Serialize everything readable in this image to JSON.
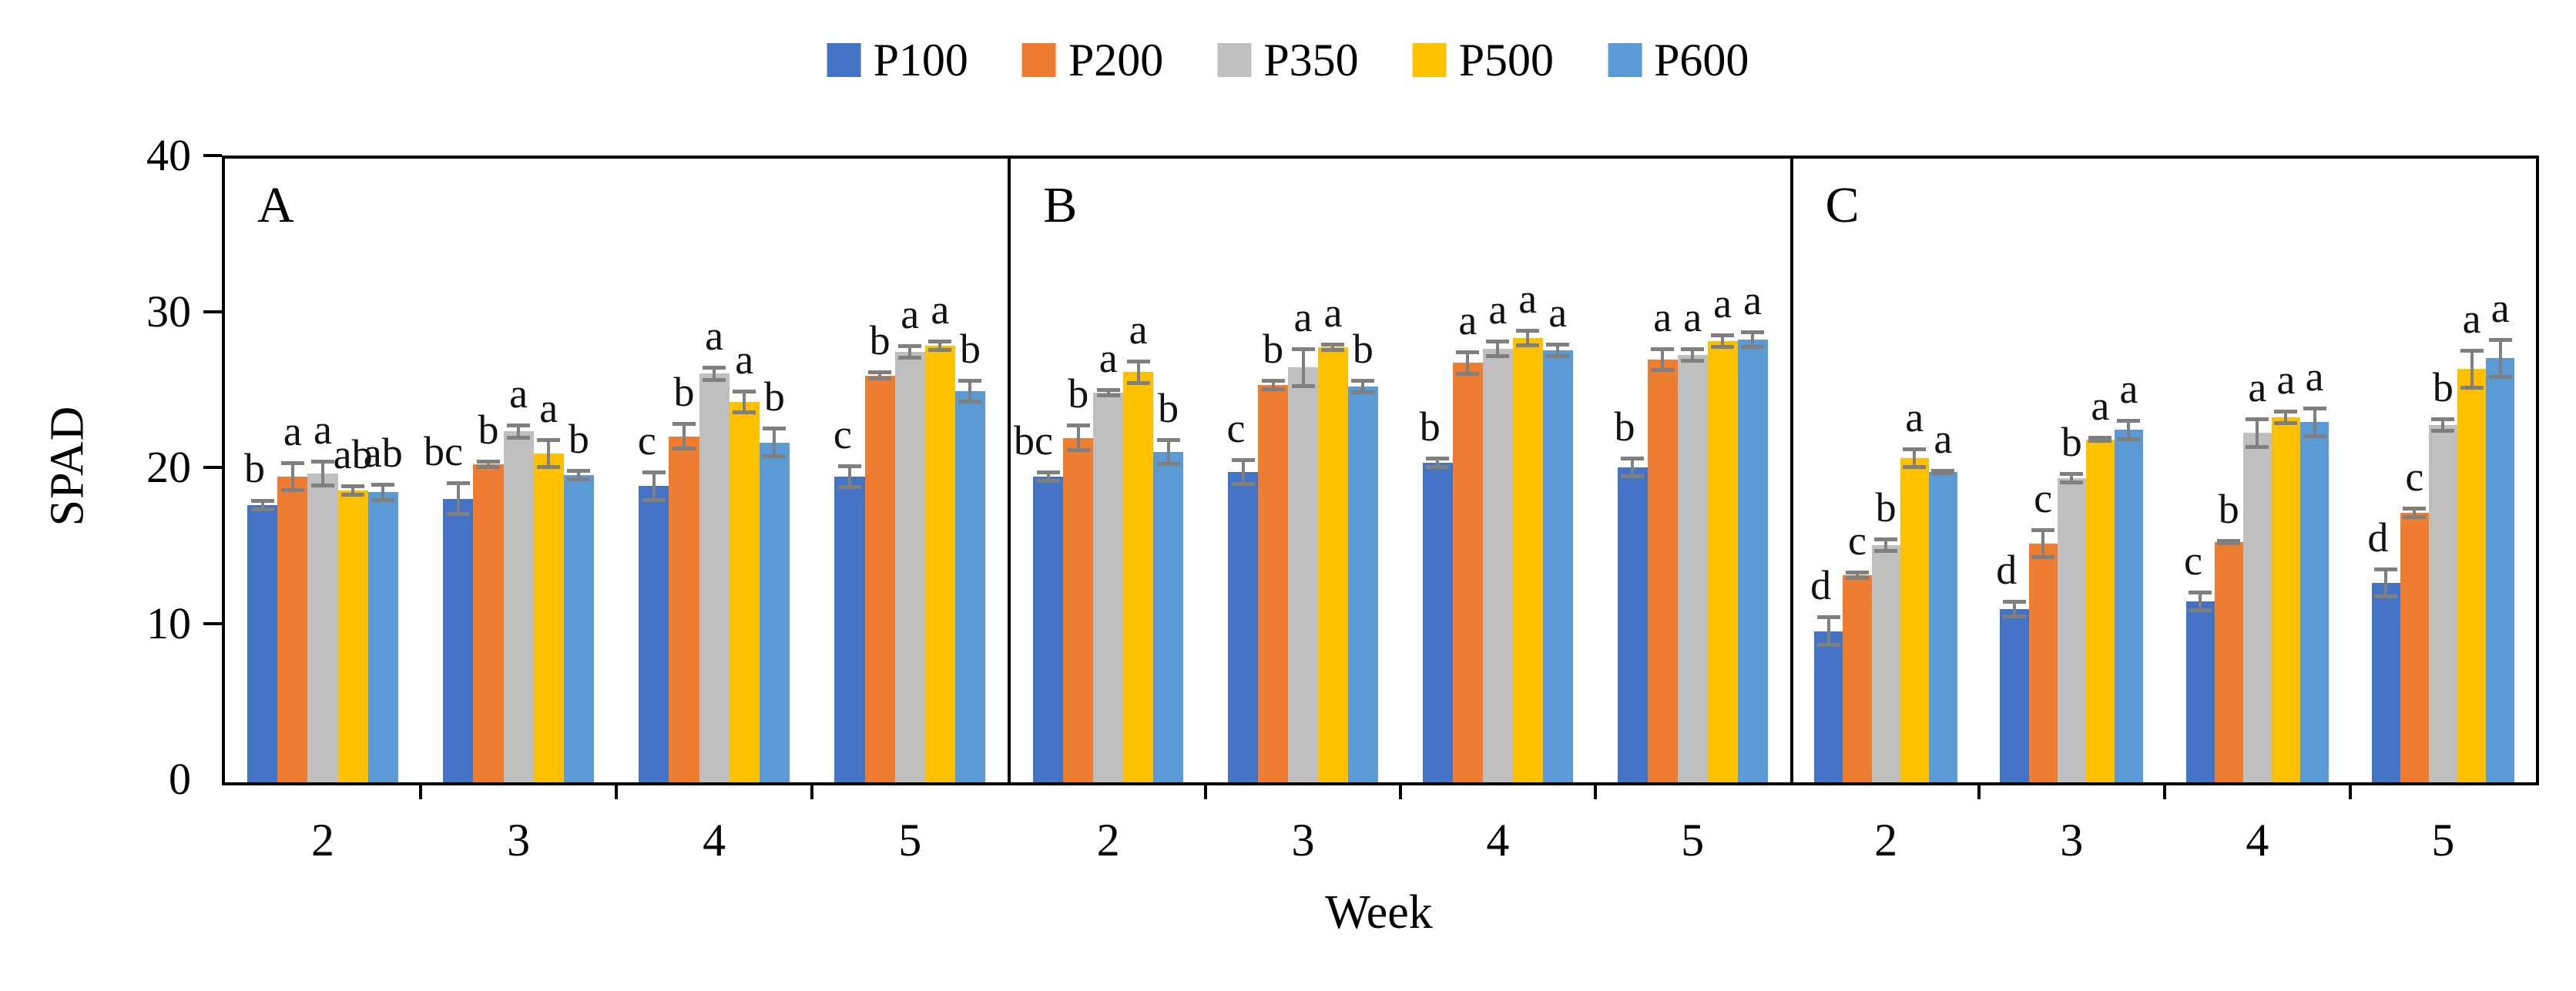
{
  "chart_data": {
    "type": "bar",
    "title": "",
    "ylabel": "SPAD",
    "xlabel": "Week",
    "ylim": [
      0,
      40
    ],
    "yticks": [
      0,
      10,
      20,
      30,
      40
    ],
    "categories": [
      "2",
      "3",
      "4",
      "5"
    ],
    "series_names": [
      "P100",
      "P200",
      "P350",
      "P500",
      "P600"
    ],
    "series_colors": [
      "#4472C4",
      "#ED7D31",
      "#BFBFBF",
      "#FFC000",
      "#5B9BD5"
    ],
    "error_bar_color": "#7F7F7F",
    "frame_color": "#000000",
    "legend_position": "top-center",
    "grid": false,
    "panels": [
      {
        "label": "A",
        "series": [
          {
            "name": "P100",
            "values": [
              17.8,
              18.2,
              19.0,
              19.6
            ],
            "errors": [
              0.4,
              1.1,
              1.0,
              0.8
            ],
            "letters": [
              "b",
              "bc",
              "c",
              "c"
            ]
          },
          {
            "name": "P200",
            "values": [
              19.6,
              20.4,
              22.2,
              26.1
            ],
            "errors": [
              1.0,
              0.3,
              0.9,
              0.3
            ],
            "letters": [
              "a",
              "b",
              "b",
              "b"
            ]
          },
          {
            "name": "P350",
            "values": [
              19.8,
              22.5,
              26.2,
              27.6
            ],
            "errors": [
              0.9,
              0.5,
              0.5,
              0.5
            ],
            "letters": [
              "a",
              "a",
              "a",
              "a"
            ]
          },
          {
            "name": "P500",
            "values": [
              18.7,
              21.1,
              24.4,
              28.0
            ],
            "errors": [
              0.4,
              1.0,
              0.8,
              0.4
            ],
            "letters": [
              "ab",
              "a",
              "a",
              "a"
            ]
          },
          {
            "name": "P600",
            "values": [
              18.6,
              19.7,
              21.8,
              25.1
            ],
            "errors": [
              0.6,
              0.4,
              1.0,
              0.8
            ],
            "letters": [
              "ab",
              "b",
              "b",
              "b"
            ]
          }
        ]
      },
      {
        "label": "B",
        "series": [
          {
            "name": "P100",
            "values": [
              19.6,
              19.9,
              20.5,
              20.2
            ],
            "errors": [
              0.4,
              0.9,
              0.4,
              0.7
            ],
            "letters": [
              "bc",
              "c",
              "b",
              "b"
            ]
          },
          {
            "name": "P200",
            "values": [
              22.1,
              25.5,
              26.9,
              27.1
            ],
            "errors": [
              0.9,
              0.4,
              0.8,
              0.8
            ],
            "letters": [
              "b",
              "b",
              "a",
              "a"
            ]
          },
          {
            "name": "P350",
            "values": [
              25.0,
              26.6,
              27.8,
              27.4
            ],
            "errors": [
              0.3,
              1.3,
              0.6,
              0.5
            ],
            "letters": [
              "a",
              "a",
              "a",
              "a"
            ]
          },
          {
            "name": "P500",
            "values": [
              26.3,
              27.9,
              28.5,
              28.3
            ],
            "errors": [
              0.8,
              0.3,
              0.6,
              0.5
            ],
            "letters": [
              "a",
              "a",
              "a",
              "a"
            ]
          },
          {
            "name": "P600",
            "values": [
              21.2,
              25.4,
              27.7,
              28.4
            ],
            "errors": [
              0.9,
              0.5,
              0.5,
              0.6
            ],
            "letters": [
              "b",
              "b",
              "a",
              "a"
            ]
          }
        ]
      },
      {
        "label": "C",
        "series": [
          {
            "name": "P100",
            "values": [
              9.7,
              11.1,
              11.6,
              12.8
            ],
            "errors": [
              1.0,
              0.6,
              0.7,
              1.0
            ],
            "letters": [
              "d",
              "d",
              "c",
              "d"
            ]
          },
          {
            "name": "P200",
            "values": [
              13.3,
              15.3,
              15.4,
              17.3
            ],
            "errors": [
              0.3,
              1.0,
              0.2,
              0.4
            ],
            "letters": [
              "c",
              "c",
              "b",
              "c"
            ]
          },
          {
            "name": "P350",
            "values": [
              15.2,
              19.5,
              22.4,
              22.9
            ],
            "errors": [
              0.5,
              0.4,
              1.0,
              0.5
            ],
            "letters": [
              "b",
              "b",
              "a",
              "b"
            ]
          },
          {
            "name": "P500",
            "values": [
              20.8,
              22.0,
              23.4,
              26.5
            ],
            "errors": [
              0.7,
              0.2,
              0.5,
              1.3
            ],
            "letters": [
              "a",
              "a",
              "a",
              "a"
            ]
          },
          {
            "name": "P600",
            "values": [
              19.9,
              22.6,
              23.1,
              27.2
            ],
            "errors": [
              0.2,
              0.7,
              1.0,
              1.3
            ],
            "letters": [
              "a",
              "a",
              "a",
              "a"
            ]
          }
        ]
      }
    ]
  },
  "legend": {
    "items": [
      {
        "label": "P100",
        "color": "#4472C4"
      },
      {
        "label": "P200",
        "color": "#ED7D31"
      },
      {
        "label": "P350",
        "color": "#BFBFBF"
      },
      {
        "label": "P500",
        "color": "#FFC000"
      },
      {
        "label": "P600",
        "color": "#5B9BD5"
      }
    ]
  }
}
